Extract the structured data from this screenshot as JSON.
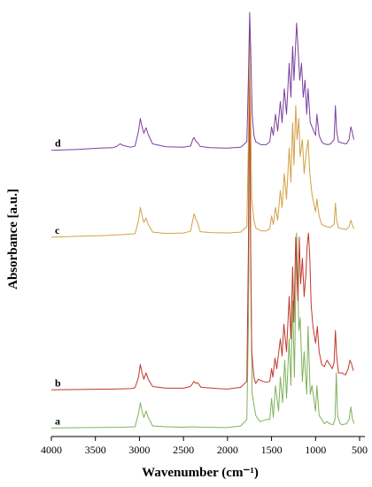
{
  "chart_data": {
    "type": "line",
    "title": "",
    "xlabel": "Wavenumber (cm⁻¹)",
    "ylabel": "Absorbance [a.u.]",
    "xlim": [
      4000,
      500
    ],
    "x_reversed": true,
    "x_ticks": [
      "4000",
      "3500",
      "3000",
      "2500",
      "2000",
      "1500",
      "1000",
      "500"
    ],
    "y_ticks_shown": false,
    "ylim": [
      0,
      1.0
    ],
    "grid": false,
    "legend": "none",
    "series": [
      {
        "name": "a",
        "color": "#7fb25c",
        "points": [
          [
            4000,
            0.02
          ],
          [
            3600,
            0.021
          ],
          [
            3200,
            0.022
          ],
          [
            3050,
            0.023
          ],
          [
            3010,
            0.055
          ],
          [
            2990,
            0.08
          ],
          [
            2970,
            0.06
          ],
          [
            2950,
            0.045
          ],
          [
            2925,
            0.06
          ],
          [
            2900,
            0.045
          ],
          [
            2850,
            0.025
          ],
          [
            2700,
            0.023
          ],
          [
            2500,
            0.022
          ],
          [
            2400,
            0.023
          ],
          [
            2300,
            0.022
          ],
          [
            2000,
            0.021
          ],
          [
            1850,
            0.025
          ],
          [
            1780,
            0.04
          ],
          [
            1760,
            0.3
          ],
          [
            1748,
            0.965
          ],
          [
            1735,
            0.4
          ],
          [
            1720,
            0.1
          ],
          [
            1680,
            0.05
          ],
          [
            1630,
            0.035
          ],
          [
            1560,
            0.04
          ],
          [
            1520,
            0.04
          ],
          [
            1500,
            0.09
          ],
          [
            1480,
            0.045
          ],
          [
            1455,
            0.12
          ],
          [
            1420,
            0.06
          ],
          [
            1400,
            0.14
          ],
          [
            1375,
            0.08
          ],
          [
            1350,
            0.18
          ],
          [
            1330,
            0.09
          ],
          [
            1300,
            0.23
          ],
          [
            1280,
            0.12
          ],
          [
            1260,
            0.32
          ],
          [
            1240,
            0.14
          ],
          [
            1215,
            0.48
          ],
          [
            1190,
            0.25
          ],
          [
            1175,
            0.28
          ],
          [
            1150,
            0.13
          ],
          [
            1130,
            0.2
          ],
          [
            1100,
            0.1
          ],
          [
            1085,
            0.26
          ],
          [
            1060,
            0.1
          ],
          [
            1040,
            0.12
          ],
          [
            1000,
            0.06
          ],
          [
            985,
            0.12
          ],
          [
            960,
            0.05
          ],
          [
            900,
            0.03
          ],
          [
            870,
            0.035
          ],
          [
            840,
            0.03
          ],
          [
            800,
            0.028
          ],
          [
            780,
            0.04
          ],
          [
            765,
            0.15
          ],
          [
            750,
            0.05
          ],
          [
            720,
            0.03
          ],
          [
            700,
            0.028
          ],
          [
            650,
            0.03
          ],
          [
            620,
            0.04
          ],
          [
            600,
            0.07
          ],
          [
            580,
            0.04
          ],
          [
            560,
            0.03
          ]
        ]
      },
      {
        "name": "b",
        "color": "#c0392b",
        "points": [
          [
            4000,
            0.11
          ],
          [
            3600,
            0.111
          ],
          [
            3300,
            0.112
          ],
          [
            3100,
            0.113
          ],
          [
            3050,
            0.115
          ],
          [
            3010,
            0.14
          ],
          [
            2990,
            0.17
          ],
          [
            2970,
            0.15
          ],
          [
            2950,
            0.135
          ],
          [
            2925,
            0.15
          ],
          [
            2900,
            0.135
          ],
          [
            2850,
            0.118
          ],
          [
            2700,
            0.114
          ],
          [
            2500,
            0.114
          ],
          [
            2420,
            0.118
          ],
          [
            2380,
            0.13
          ],
          [
            2360,
            0.125
          ],
          [
            2340,
            0.127
          ],
          [
            2300,
            0.116
          ],
          [
            2100,
            0.113
          ],
          [
            2000,
            0.112
          ],
          [
            1850,
            0.116
          ],
          [
            1780,
            0.13
          ],
          [
            1762,
            0.45
          ],
          [
            1752,
            0.95
          ],
          [
            1740,
            0.5
          ],
          [
            1725,
            0.2
          ],
          [
            1700,
            0.14
          ],
          [
            1680,
            0.125
          ],
          [
            1650,
            0.135
          ],
          [
            1600,
            0.13
          ],
          [
            1560,
            0.128
          ],
          [
            1520,
            0.13
          ],
          [
            1500,
            0.16
          ],
          [
            1485,
            0.14
          ],
          [
            1460,
            0.185
          ],
          [
            1440,
            0.16
          ],
          [
            1400,
            0.23
          ],
          [
            1380,
            0.19
          ],
          [
            1360,
            0.265
          ],
          [
            1330,
            0.2
          ],
          [
            1300,
            0.33
          ],
          [
            1280,
            0.23
          ],
          [
            1260,
            0.4
          ],
          [
            1245,
            0.27
          ],
          [
            1225,
            0.47
          ],
          [
            1200,
            0.32
          ],
          [
            1185,
            0.47
          ],
          [
            1170,
            0.36
          ],
          [
            1150,
            0.42
          ],
          [
            1130,
            0.33
          ],
          [
            1110,
            0.38
          ],
          [
            1095,
            0.45
          ],
          [
            1080,
            0.48
          ],
          [
            1065,
            0.42
          ],
          [
            1050,
            0.31
          ],
          [
            1030,
            0.26
          ],
          [
            1000,
            0.22
          ],
          [
            980,
            0.26
          ],
          [
            960,
            0.2
          ],
          [
            930,
            0.17
          ],
          [
            900,
            0.165
          ],
          [
            870,
            0.18
          ],
          [
            840,
            0.17
          ],
          [
            810,
            0.16
          ],
          [
            790,
            0.175
          ],
          [
            775,
            0.25
          ],
          [
            760,
            0.19
          ],
          [
            740,
            0.15
          ],
          [
            700,
            0.15
          ],
          [
            660,
            0.145
          ],
          [
            630,
            0.16
          ],
          [
            610,
            0.18
          ],
          [
            590,
            0.17
          ],
          [
            570,
            0.155
          ]
        ]
      },
      {
        "name": "c",
        "color": "#d4a046",
        "points": [
          [
            4000,
            0.47
          ],
          [
            3700,
            0.472
          ],
          [
            3400,
            0.474
          ],
          [
            3200,
            0.476
          ],
          [
            3050,
            0.478
          ],
          [
            3010,
            0.51
          ],
          [
            2990,
            0.54
          ],
          [
            2970,
            0.52
          ],
          [
            2950,
            0.505
          ],
          [
            2925,
            0.515
          ],
          [
            2900,
            0.5
          ],
          [
            2850,
            0.482
          ],
          [
            2700,
            0.479
          ],
          [
            2500,
            0.48
          ],
          [
            2420,
            0.484
          ],
          [
            2395,
            0.51
          ],
          [
            2380,
            0.525
          ],
          [
            2360,
            0.512
          ],
          [
            2340,
            0.505
          ],
          [
            2310,
            0.483
          ],
          [
            2200,
            0.481
          ],
          [
            2000,
            0.48
          ],
          [
            1850,
            0.482
          ],
          [
            1780,
            0.495
          ],
          [
            1762,
            0.7
          ],
          [
            1752,
            0.93
          ],
          [
            1740,
            0.8
          ],
          [
            1725,
            0.56
          ],
          [
            1700,
            0.51
          ],
          [
            1680,
            0.492
          ],
          [
            1620,
            0.485
          ],
          [
            1560,
            0.485
          ],
          [
            1520,
            0.49
          ],
          [
            1500,
            0.52
          ],
          [
            1480,
            0.5
          ],
          [
            1455,
            0.54
          ],
          [
            1430,
            0.51
          ],
          [
            1400,
            0.58
          ],
          [
            1380,
            0.54
          ],
          [
            1355,
            0.62
          ],
          [
            1330,
            0.56
          ],
          [
            1300,
            0.68
          ],
          [
            1280,
            0.6
          ],
          [
            1260,
            0.74
          ],
          [
            1245,
            0.64
          ],
          [
            1225,
            0.78
          ],
          [
            1210,
            0.7
          ],
          [
            1190,
            0.75
          ],
          [
            1175,
            0.66
          ],
          [
            1150,
            0.7
          ],
          [
            1130,
            0.62
          ],
          [
            1110,
            0.66
          ],
          [
            1085,
            0.7
          ],
          [
            1065,
            0.62
          ],
          [
            1040,
            0.57
          ],
          [
            1000,
            0.53
          ],
          [
            985,
            0.56
          ],
          [
            960,
            0.52
          ],
          [
            930,
            0.5
          ],
          [
            880,
            0.495
          ],
          [
            830,
            0.493
          ],
          [
            790,
            0.5
          ],
          [
            775,
            0.55
          ],
          [
            760,
            0.51
          ],
          [
            740,
            0.492
          ],
          [
            700,
            0.49
          ],
          [
            650,
            0.488
          ],
          [
            620,
            0.495
          ],
          [
            600,
            0.51
          ],
          [
            585,
            0.5
          ],
          [
            565,
            0.49
          ]
        ]
      },
      {
        "name": "d",
        "color": "#7b3fa0",
        "points": [
          [
            4000,
            0.675
          ],
          [
            3700,
            0.677
          ],
          [
            3450,
            0.68
          ],
          [
            3300,
            0.681
          ],
          [
            3260,
            0.684
          ],
          [
            3220,
            0.69
          ],
          [
            3180,
            0.686
          ],
          [
            3100,
            0.682
          ],
          [
            3050,
            0.685
          ],
          [
            3010,
            0.72
          ],
          [
            2990,
            0.75
          ],
          [
            2970,
            0.73
          ],
          [
            2950,
            0.715
          ],
          [
            2925,
            0.728
          ],
          [
            2900,
            0.712
          ],
          [
            2850,
            0.69
          ],
          [
            2700,
            0.683
          ],
          [
            2500,
            0.682
          ],
          [
            2420,
            0.685
          ],
          [
            2395,
            0.7
          ],
          [
            2380,
            0.705
          ],
          [
            2360,
            0.696
          ],
          [
            2340,
            0.693
          ],
          [
            2310,
            0.684
          ],
          [
            2200,
            0.681
          ],
          [
            2000,
            0.68
          ],
          [
            1850,
            0.682
          ],
          [
            1780,
            0.695
          ],
          [
            1762,
            0.85
          ],
          [
            1748,
            1.0
          ],
          [
            1735,
            0.9
          ],
          [
            1720,
            0.76
          ],
          [
            1700,
            0.71
          ],
          [
            1680,
            0.695
          ],
          [
            1620,
            0.688
          ],
          [
            1560,
            0.688
          ],
          [
            1520,
            0.695
          ],
          [
            1500,
            0.73
          ],
          [
            1480,
            0.71
          ],
          [
            1455,
            0.76
          ],
          [
            1430,
            0.72
          ],
          [
            1400,
            0.79
          ],
          [
            1380,
            0.74
          ],
          [
            1355,
            0.82
          ],
          [
            1330,
            0.76
          ],
          [
            1300,
            0.88
          ],
          [
            1280,
            0.8
          ],
          [
            1260,
            0.92
          ],
          [
            1245,
            0.84
          ],
          [
            1215,
            0.975
          ],
          [
            1195,
            0.9
          ],
          [
            1180,
            0.84
          ],
          [
            1160,
            0.88
          ],
          [
            1140,
            0.8
          ],
          [
            1120,
            0.84
          ],
          [
            1100,
            0.76
          ],
          [
            1085,
            0.82
          ],
          [
            1060,
            0.74
          ],
          [
            1040,
            0.73
          ],
          [
            1000,
            0.71
          ],
          [
            985,
            0.76
          ],
          [
            960,
            0.71
          ],
          [
            930,
            0.695
          ],
          [
            900,
            0.69
          ],
          [
            860,
            0.688
          ],
          [
            830,
            0.69
          ],
          [
            790,
            0.7
          ],
          [
            775,
            0.78
          ],
          [
            760,
            0.72
          ],
          [
            740,
            0.695
          ],
          [
            700,
            0.692
          ],
          [
            650,
            0.69
          ],
          [
            620,
            0.7
          ],
          [
            600,
            0.73
          ],
          [
            585,
            0.72
          ],
          [
            565,
            0.7
          ]
        ]
      }
    ]
  }
}
